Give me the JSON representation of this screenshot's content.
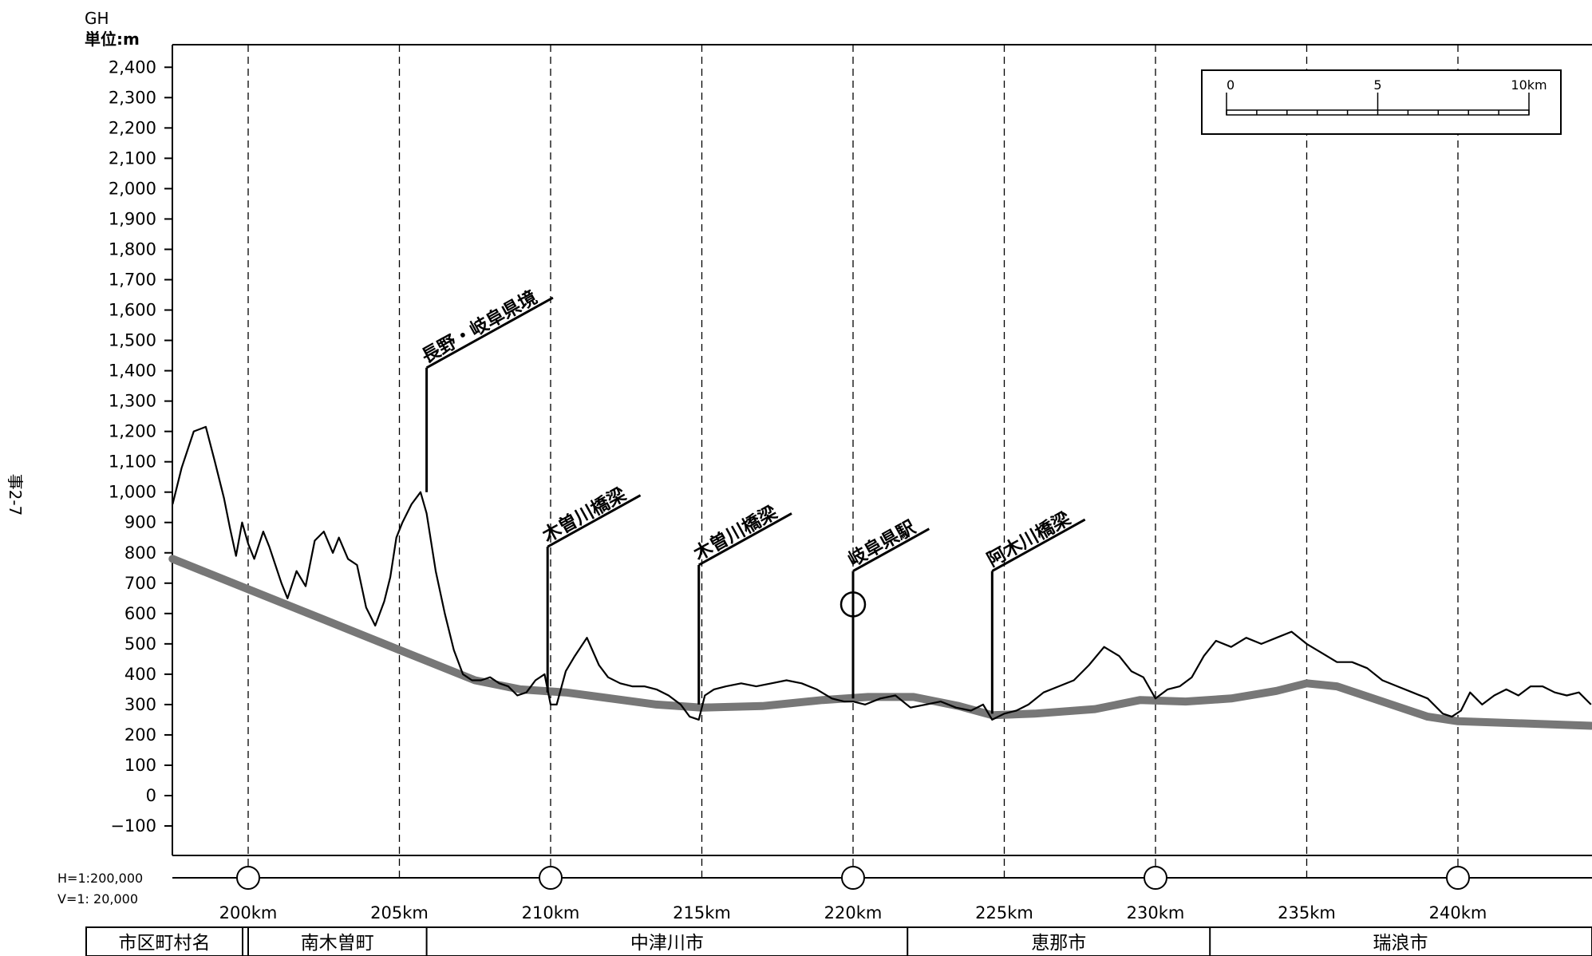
{
  "page_tag": "事2-7",
  "chart_data": {
    "type": "line",
    "title": "",
    "ylabel_top": "GH",
    "unit_label": "単位:m",
    "ylim": [
      -100,
      2400
    ],
    "yticks": [
      {
        "v": 2400,
        "label": "2,400"
      },
      {
        "v": 2300,
        "label": "2,300"
      },
      {
        "v": 2200,
        "label": "2,200"
      },
      {
        "v": 2100,
        "label": "2,100"
      },
      {
        "v": 2000,
        "label": "2,000"
      },
      {
        "v": 1900,
        "label": "1,900"
      },
      {
        "v": 1800,
        "label": "1,800"
      },
      {
        "v": 1700,
        "label": "1,700"
      },
      {
        "v": 1600,
        "label": "1,600"
      },
      {
        "v": 1500,
        "label": "1,500"
      },
      {
        "v": 1400,
        "label": "1,400"
      },
      {
        "v": 1300,
        "label": "1,300"
      },
      {
        "v": 1200,
        "label": "1,200"
      },
      {
        "v": 1100,
        "label": "1,100"
      },
      {
        "v": 1000,
        "label": "1,000"
      },
      {
        "v": 900,
        "label": "900"
      },
      {
        "v": 800,
        "label": "800"
      },
      {
        "v": 700,
        "label": "700"
      },
      {
        "v": 600,
        "label": "600"
      },
      {
        "v": 500,
        "label": "500"
      },
      {
        "v": 400,
        "label": "400"
      },
      {
        "v": 300,
        "label": "300"
      },
      {
        "v": 200,
        "label": "200"
      },
      {
        "v": 100,
        "label": "100"
      },
      {
        "v": 0,
        "label": "0"
      },
      {
        "v": -100,
        "label": "−100"
      }
    ],
    "xlim_km": [
      197.5,
      244.4
    ],
    "xticks": [
      {
        "km": 200,
        "label": "200km"
      },
      {
        "km": 205,
        "label": "205km"
      },
      {
        "km": 210,
        "label": "210km"
      },
      {
        "km": 215,
        "label": "215km"
      },
      {
        "km": 220,
        "label": "220km"
      },
      {
        "km": 225,
        "label": "225km"
      },
      {
        "km": 230,
        "label": "230km"
      },
      {
        "km": 235,
        "label": "235km"
      },
      {
        "km": 240,
        "label": "240km"
      }
    ],
    "grid": "vertical dashed lines every 5km",
    "scale_h": "H=1:200,000",
    "scale_v": "V=1: 20,000",
    "scale_bar": {
      "labels": [
        "0",
        "5",
        "10km"
      ],
      "range_km": 10
    },
    "series": [
      {
        "role": "ground_elevation",
        "color": "#000000",
        "x": [
          197.5,
          197.8,
          198.2,
          198.6,
          198.9,
          199.2,
          199.4,
          199.6,
          199.8,
          200.0,
          200.2,
          200.5,
          200.7,
          200.9,
          201.1,
          201.3,
          201.6,
          201.9,
          202.2,
          202.5,
          202.8,
          203.0,
          203.3,
          203.6,
          203.9,
          204.2,
          204.5,
          204.7,
          204.9,
          205.1,
          205.4,
          205.7,
          205.9,
          206.2,
          206.5,
          206.8,
          207.1,
          207.4,
          207.7,
          208.0,
          208.3,
          208.6,
          208.9,
          209.2,
          209.5,
          209.8,
          210.0,
          210.2,
          210.5,
          210.8,
          211.2,
          211.6,
          211.9,
          212.3,
          212.7,
          213.1,
          213.5,
          213.9,
          214.3,
          214.6,
          214.9,
          215.1,
          215.4,
          215.8,
          216.3,
          216.8,
          217.3,
          217.8,
          218.3,
          218.8,
          219.3,
          219.7,
          220.0,
          220.4,
          220.9,
          221.4,
          221.9,
          222.4,
          222.9,
          223.4,
          223.9,
          224.3,
          224.6,
          225.0,
          225.4,
          225.8,
          226.3,
          226.8,
          227.3,
          227.8,
          228.3,
          228.8,
          229.2,
          229.6,
          230.0,
          230.4,
          230.8,
          231.2,
          231.6,
          232.0,
          232.5,
          233.0,
          233.5,
          234.0,
          234.5,
          235.0,
          235.5,
          236.0,
          236.5,
          237.0,
          237.5,
          238.0,
          238.5,
          239.0,
          239.5,
          239.8,
          240.1,
          240.4,
          240.8,
          241.2,
          241.6,
          242.0,
          242.4,
          242.8,
          243.2,
          243.6,
          244.0,
          244.3,
          244.4
        ],
        "y": [
          960,
          1080,
          1200,
          1215,
          1100,
          980,
          880,
          790,
          900,
          830,
          780,
          870,
          820,
          760,
          700,
          650,
          740,
          690,
          840,
          870,
          800,
          850,
          780,
          760,
          620,
          560,
          640,
          720,
          850,
          900,
          960,
          1000,
          930,
          740,
          600,
          480,
          400,
          380,
          380,
          390,
          370,
          360,
          330,
          340,
          380,
          400,
          300,
          300,
          410,
          460,
          520,
          430,
          390,
          370,
          360,
          360,
          350,
          330,
          300,
          260,
          250,
          330,
          350,
          360,
          370,
          360,
          370,
          380,
          370,
          350,
          320,
          310,
          310,
          300,
          320,
          330,
          290,
          300,
          310,
          290,
          280,
          300,
          250,
          270,
          280,
          300,
          340,
          360,
          380,
          430,
          490,
          460,
          410,
          390,
          320,
          350,
          360,
          390,
          460,
          510,
          490,
          520,
          500,
          520,
          540,
          500,
          470,
          440,
          440,
          420,
          380,
          360,
          340,
          320,
          270,
          260,
          280,
          340,
          300,
          330,
          350,
          330,
          360,
          360,
          340,
          330,
          340,
          310,
          300
        ]
      },
      {
        "role": "route_profile",
        "color": "#777777",
        "x": [
          197.5,
          200.0,
          202.5,
          205.0,
          207.5,
          209.0,
          210.5,
          212.0,
          213.5,
          215.0,
          217.0,
          219.0,
          220.5,
          222.0,
          223.5,
          224.6,
          226.0,
          228.0,
          229.5,
          231.0,
          232.5,
          234.0,
          235.0,
          236.0,
          237.5,
          239.0,
          240.0,
          241.5,
          243.0,
          244.4
        ],
        "y": [
          780,
          680,
          580,
          480,
          380,
          350,
          340,
          320,
          300,
          290,
          295,
          315,
          325,
          325,
          295,
          265,
          270,
          285,
          315,
          310,
          320,
          345,
          370,
          360,
          310,
          260,
          245,
          240,
          235,
          230
        ]
      }
    ],
    "annotations": [
      {
        "label": "長野・岐阜県境",
        "km": 205.9,
        "top_m": 1410,
        "base_m": 1000
      },
      {
        "label": "木曽川橋梁",
        "km": 209.9,
        "top_m": 820,
        "base_m": 340
      },
      {
        "label": "木曽川橋梁",
        "km": 214.9,
        "top_m": 760,
        "base_m": 300
      },
      {
        "label": "岐阜県駅",
        "km": 220.0,
        "top_m": 740,
        "base_m": 320
      },
      {
        "label": "阿木川橋梁",
        "km": 224.6,
        "top_m": 740,
        "base_m": 270
      }
    ],
    "station_marker": {
      "km": 220.0,
      "elev_m": 630
    },
    "axis_markers_km": [
      200,
      210,
      220,
      230,
      240
    ],
    "municipalities": {
      "header": "市区町村名",
      "names": [
        {
          "name": "南木曽町",
          "from_km": 200.0,
          "to_km": 205.9
        },
        {
          "name": "中津川市",
          "from_km": 205.9,
          "to_km": 221.8
        },
        {
          "name": "恵那市",
          "from_km": 221.8,
          "to_km": 231.8
        },
        {
          "name": "瑞浪市",
          "from_km": 231.8,
          "to_km": 244.4
        }
      ]
    }
  }
}
